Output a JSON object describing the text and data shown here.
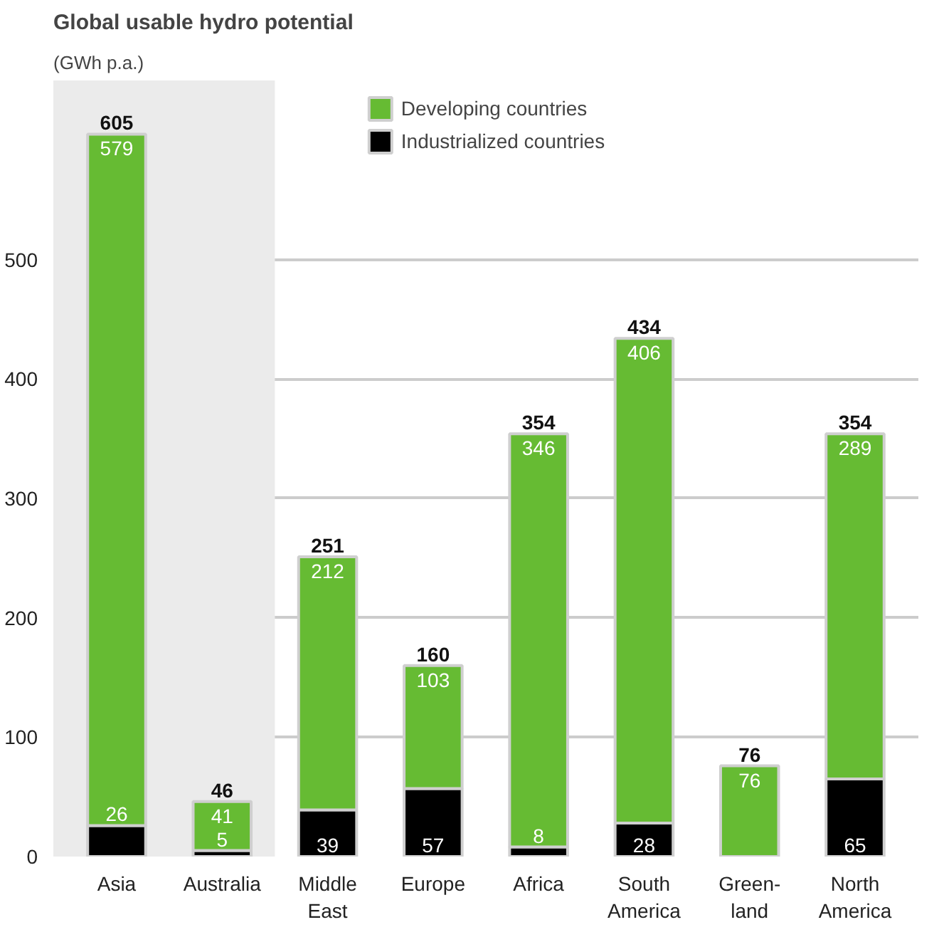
{
  "chart_data": {
    "type": "bar",
    "stacked": true,
    "title": "Global usable hydro potential",
    "subtitle": "(GWh p.a.)",
    "categories": [
      "Asia",
      "Australia",
      "Middle\nEast",
      "Europe",
      "Africa",
      "South\nAmerica",
      "Green-\nland",
      "North\nAmerica"
    ],
    "series": [
      {
        "name": "Industrialized countries",
        "color": "#000000",
        "values": [
          26,
          5,
          39,
          57,
          8,
          28,
          0,
          65
        ],
        "value_labels": [
          "26",
          "5",
          "39",
          "57",
          "8",
          "28",
          null,
          "65"
        ]
      },
      {
        "name": "Developing countries",
        "color": "#66bb33",
        "values": [
          579,
          41,
          212,
          103,
          346,
          406,
          76,
          289
        ],
        "value_labels": [
          "579",
          "41",
          "212",
          "103",
          "346",
          "406",
          "76",
          "289"
        ]
      }
    ],
    "totals": [
      "605",
      "46",
      "251",
      "160",
      "354",
      "434",
      "76",
      "354"
    ],
    "ylim": [
      0,
      650
    ],
    "yticks": [
      0,
      100,
      200,
      300,
      400,
      500
    ],
    "grid": "y",
    "legend": "top",
    "bands": [
      {
        "axis": "x",
        "from": "Asia",
        "to": "Australia",
        "color": "#ebebeb"
      }
    ]
  }
}
